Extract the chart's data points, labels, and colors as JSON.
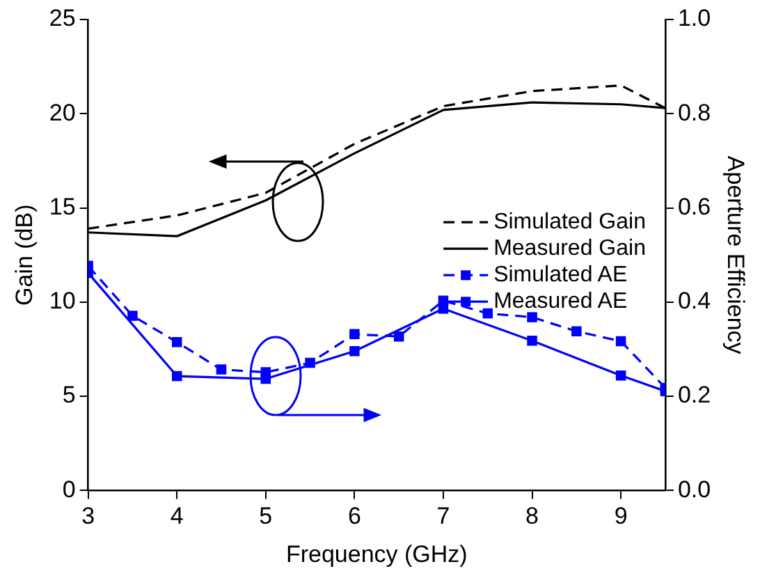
{
  "chart_data": {
    "type": "line",
    "xlabel": "Frequency (GHz)",
    "ylabel": "Gain (dB)",
    "y2label": "Aperture Efficiency",
    "xlim": [
      3,
      9.5
    ],
    "xticks": [
      3,
      4,
      5,
      6,
      7,
      8,
      9
    ],
    "ylim": [
      0,
      25
    ],
    "yticks": [
      0,
      5,
      10,
      15,
      20,
      25
    ],
    "y2lim": [
      0,
      1
    ],
    "y2ticks": [
      {
        "value": 0,
        "label": "0.0"
      },
      {
        "value": 0.2,
        "label": "0.2"
      },
      {
        "value": 0.4,
        "label": "0.4"
      },
      {
        "value": 0.6,
        "label": "0.6"
      },
      {
        "value": 0.8,
        "label": "0.8"
      },
      {
        "value": 1,
        "label": "1.0"
      }
    ],
    "grid": false,
    "legend": "right",
    "series": [
      {
        "name": "Simulated Gain",
        "color": "#000000",
        "line_style": "dashed",
        "marker": "none",
        "x": [
          3,
          4,
          5,
          6,
          7,
          8,
          9,
          9.5
        ],
        "values": [
          13.9,
          14.6,
          15.8,
          18.4,
          20.4,
          21.2,
          21.5,
          20.3
        ]
      },
      {
        "name": "Measured Gain",
        "color": "#000000",
        "line_style": "solid",
        "marker": "none",
        "x": [
          3,
          4,
          5,
          6,
          7,
          8,
          9,
          9.5
        ],
        "values": [
          13.7,
          13.5,
          15.4,
          17.9,
          20.2,
          20.6,
          20.5,
          20.3
        ]
      },
      {
        "name": "Simulated AE",
        "color": "#0000ff",
        "line_style": "dashed",
        "marker": "square",
        "axis": "y2",
        "x": [
          3,
          3.5,
          4,
          4.5,
          5,
          5.5,
          6,
          6.5,
          7,
          7.5,
          8,
          8.5,
          9,
          9.5
        ],
        "values": [
          0.477,
          0.371,
          0.315,
          0.257,
          0.251,
          0.271,
          0.332,
          0.327,
          0.403,
          0.376,
          0.368,
          0.338,
          0.317,
          0.218
        ]
      },
      {
        "name": "Measured AE",
        "color": "#0000ff",
        "line_style": "solid",
        "marker": "square",
        "axis": "y2",
        "x": [
          3,
          4,
          5,
          6,
          7,
          8,
          9,
          9.5
        ],
        "values": [
          0.462,
          0.243,
          0.237,
          0.296,
          0.386,
          0.318,
          0.244,
          0.211
        ]
      }
    ]
  }
}
